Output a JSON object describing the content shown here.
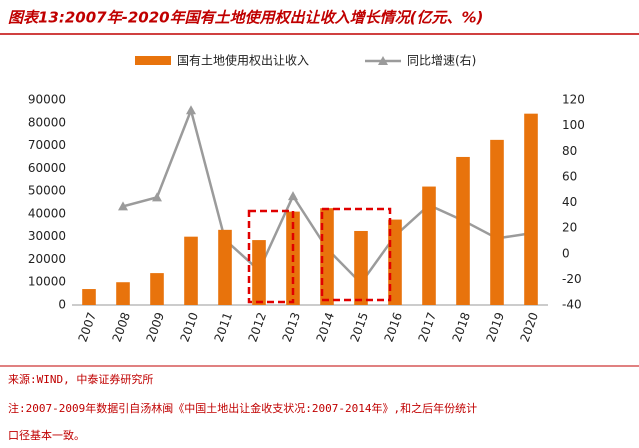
{
  "chart_data": {
    "type": "combo",
    "title": "图表13:2007年-2020年国有土地使用权出让收入增长情况(亿元、%)",
    "categories": [
      "2007",
      "2008",
      "2009",
      "2010",
      "2011",
      "2012",
      "2013",
      "2014",
      "2015",
      "2016",
      "2017",
      "2018",
      "2019",
      "2020"
    ],
    "series": [
      {
        "name": "国有土地使用权出让收入",
        "type": "bar",
        "color": "#e8730c",
        "values": [
          7000,
          10000,
          14000,
          30000,
          33000,
          28500,
          41000,
          42500,
          32500,
          37500,
          52000,
          65000,
          72500,
          84000
        ]
      },
      {
        "name": "同比增速(右)",
        "type": "line",
        "axis": "y2",
        "color": "#9b9b9b",
        "values": [
          null,
          37,
          44,
          112,
          11,
          -13,
          45,
          4,
          -23,
          14,
          38,
          26,
          12,
          16
        ]
      }
    ],
    "ylim": [
      0,
      90000
    ],
    "yticks": [
      0,
      10000,
      20000,
      30000,
      40000,
      50000,
      60000,
      70000,
      80000,
      90000
    ],
    "y2lim": [
      -40,
      120
    ],
    "y2ticks": [
      -40,
      -20,
      0,
      20,
      40,
      60,
      80,
      100,
      120
    ],
    "source": "来源:WIND, 中泰证券研究所",
    "note": "注:2007-2009年数据引自汤林闽《中国土地出让金收支状况:2007-2014年》,和之后年份统计",
    "note2": "口径基本一致。"
  }
}
